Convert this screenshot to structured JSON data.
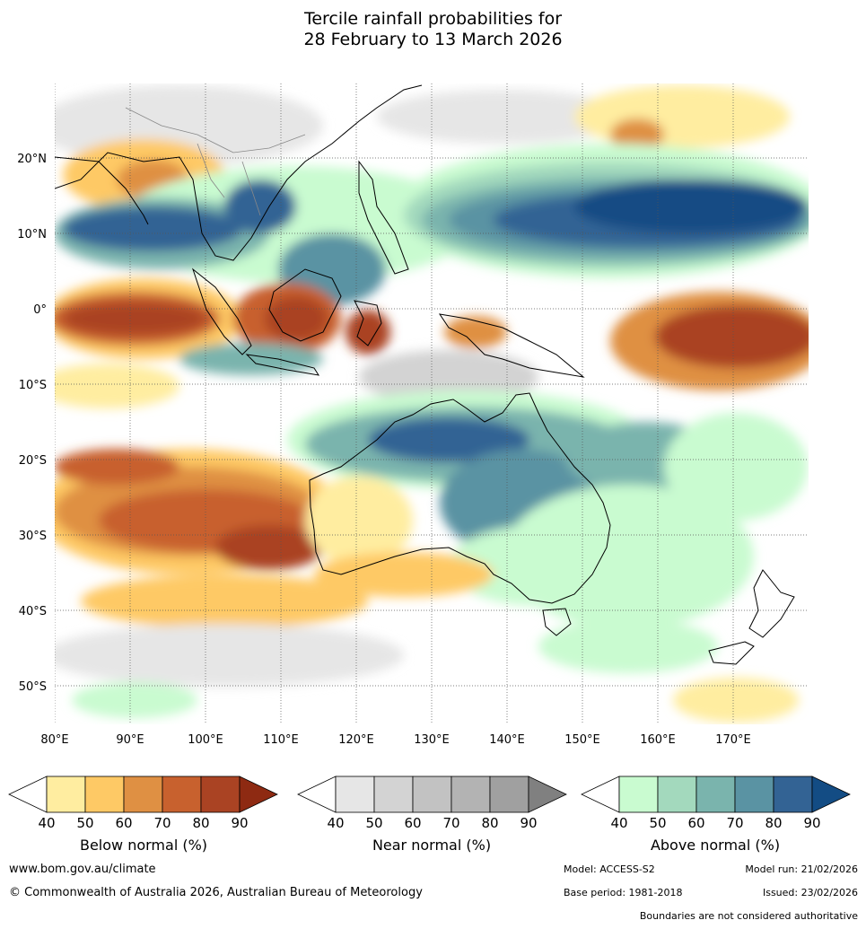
{
  "title": {
    "line1": "Tercile rainfall probabilities for",
    "line2": "28 February to 13 March 2026"
  },
  "axes": {
    "lon_labels": [
      "80°E",
      "90°E",
      "100°E",
      "110°E",
      "120°E",
      "130°E",
      "140°E",
      "150°E",
      "160°E",
      "170°E"
    ],
    "lat_labels": [
      "20°N",
      "10°N",
      "0°",
      "10°S",
      "20°S",
      "30°S",
      "40°S",
      "50°S"
    ]
  },
  "colorbars": [
    {
      "name": "Below normal (%)",
      "ticks": [
        "40",
        "50",
        "60",
        "70",
        "80",
        "90"
      ],
      "colors": [
        "#ffeda0",
        "#fec965",
        "#df9043",
        "#c8612e",
        "#aa4323",
        "#8e2a12"
      ]
    },
    {
      "name": "Near normal (%)",
      "ticks": [
        "40",
        "50",
        "60",
        "70",
        "80",
        "90"
      ],
      "colors": [
        "#e6e6e6",
        "#d3d3d3",
        "#c2c2c2",
        "#b3b3b3",
        "#a0a0a0",
        "#808080"
      ]
    },
    {
      "name": "Above normal (%)",
      "ticks": [
        "40",
        "50",
        "60",
        "70",
        "80",
        "90"
      ],
      "colors": [
        "#c9fbd0",
        "#a3d9bd",
        "#7ab4ad",
        "#5a93a3",
        "#336394",
        "#134c84"
      ]
    }
  ],
  "footer": {
    "website": "www.bom.gov.au/climate",
    "copyright": "© Commonwealth of Australia 2026, Australian Bureau of Meteorology",
    "model": "Model: ACCESS-S2",
    "model_run": "Model run: 21/02/2026",
    "base_period": "Base period: 1981-2018",
    "issued": "Issued: 23/02/2026",
    "disclaimer": "Boundaries are not considered authoritative"
  }
}
